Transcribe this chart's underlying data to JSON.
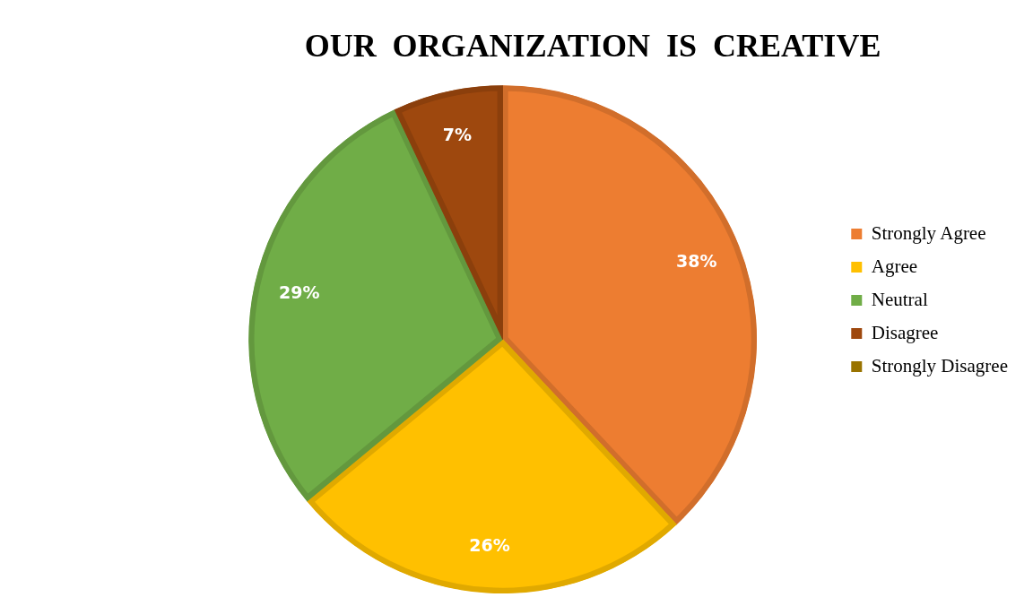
{
  "chart_data": {
    "type": "pie",
    "title": "OUR  ORGANIZATION  IS  CREATIVE",
    "categories": [
      "Strongly Agree",
      "Agree",
      "Neutral",
      "Disagree",
      "Strongly Disagree"
    ],
    "values": [
      38,
      26,
      29,
      7,
      0
    ],
    "colors": [
      "#ed7d31",
      "#ffc000",
      "#70ad47",
      "#9e480e",
      "#997300"
    ],
    "value_labels": [
      "38%",
      "26%",
      "29%",
      "7%",
      null
    ],
    "legend": "right"
  }
}
